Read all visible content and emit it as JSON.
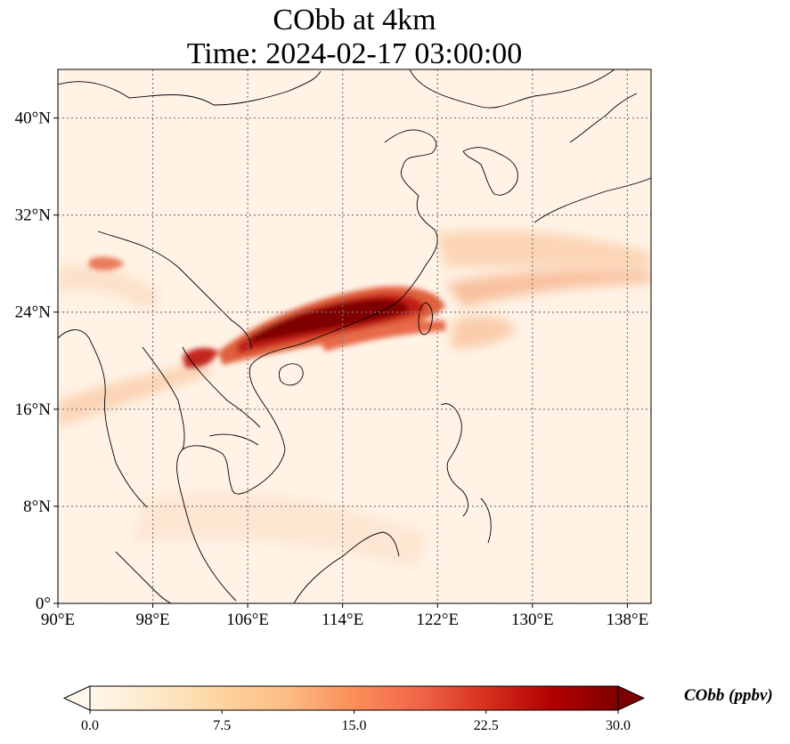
{
  "title": {
    "line1": "CObb at 4km",
    "line2": "Time: 2024-02-17 03:00:00"
  },
  "map": {
    "lon_range": [
      90,
      140
    ],
    "lat_range": [
      0,
      44
    ],
    "lon_ticks": [
      {
        "value": 90,
        "label": "90°E"
      },
      {
        "value": 98,
        "label": "98°E"
      },
      {
        "value": 106,
        "label": "106°E"
      },
      {
        "value": 114,
        "label": "114°E"
      },
      {
        "value": 122,
        "label": "122°E"
      },
      {
        "value": 130,
        "label": "130°E"
      },
      {
        "value": 138,
        "label": "138°E"
      }
    ],
    "lat_ticks": [
      {
        "value": 0,
        "label": "0°"
      },
      {
        "value": 8,
        "label": "8°N"
      },
      {
        "value": 16,
        "label": "16°N"
      },
      {
        "value": 24,
        "label": "24°N"
      },
      {
        "value": 32,
        "label": "32°N"
      },
      {
        "value": 40,
        "label": "40°N"
      }
    ],
    "grid": true,
    "background_color": "#fff3e6",
    "coastline_color": "#000000",
    "grid_color": "#7a7a7a"
  },
  "colorbar": {
    "title": "CObb (ppbv)",
    "min": 0,
    "max": 30,
    "extend": "both",
    "ticks": [
      {
        "value": 0,
        "label": "0.0"
      },
      {
        "value": 7.5,
        "label": "7.5"
      },
      {
        "value": 15,
        "label": "15.0"
      },
      {
        "value": 22.5,
        "label": "22.5"
      },
      {
        "value": 30,
        "label": "30.0"
      }
    ],
    "colormap": "OrRd",
    "colors": [
      "#fff7ec",
      "#fee8c8",
      "#fdd49e",
      "#fdbb84",
      "#fc8d59",
      "#ef6548",
      "#d7301f",
      "#b30000",
      "#7f0000"
    ]
  }
}
